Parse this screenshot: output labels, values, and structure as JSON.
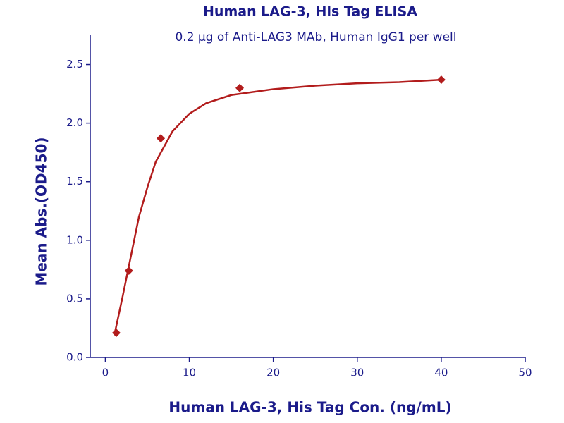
{
  "chart_data": {
    "type": "scatter",
    "title": "Human LAG-3, His Tag ELISA",
    "subtitle": "0.2 μg of Anti-LAG3 MAb, Human IgG1 per well",
    "x_label": "Human LAG-3, His Tag Con. (ng/mL)",
    "y_label": "Mean Abs.(OD450)",
    "series": [
      {
        "style": "markers",
        "color": "#b21c1c",
        "x": [
          1.3,
          2.8,
          6.6,
          16,
          40
        ],
        "values": [
          0.21,
          0.74,
          1.87,
          2.3,
          2.37
        ]
      },
      {
        "style": "line",
        "color": "#b21c1c",
        "x": [
          1.1,
          2,
          3,
          4,
          5,
          6,
          8,
          10,
          12,
          15,
          20,
          25,
          30,
          35,
          40
        ],
        "values": [
          0.2,
          0.5,
          0.85,
          1.2,
          1.45,
          1.67,
          1.93,
          2.08,
          2.17,
          2.24,
          2.29,
          2.32,
          2.34,
          2.35,
          2.37
        ]
      }
    ],
    "xlim": [
      -1.8,
      50
    ],
    "xticks": [
      0,
      10,
      20,
      30,
      40,
      50
    ],
    "ylim": [
      0,
      2.75
    ],
    "yticks": [
      {
        "value": 0,
        "label": "0.0"
      },
      0.5,
      {
        "value": 1,
        "label": "1.0"
      },
      1.5,
      {
        "value": 2,
        "label": "2.0"
      },
      2.5
    ],
    "grid": false
  }
}
